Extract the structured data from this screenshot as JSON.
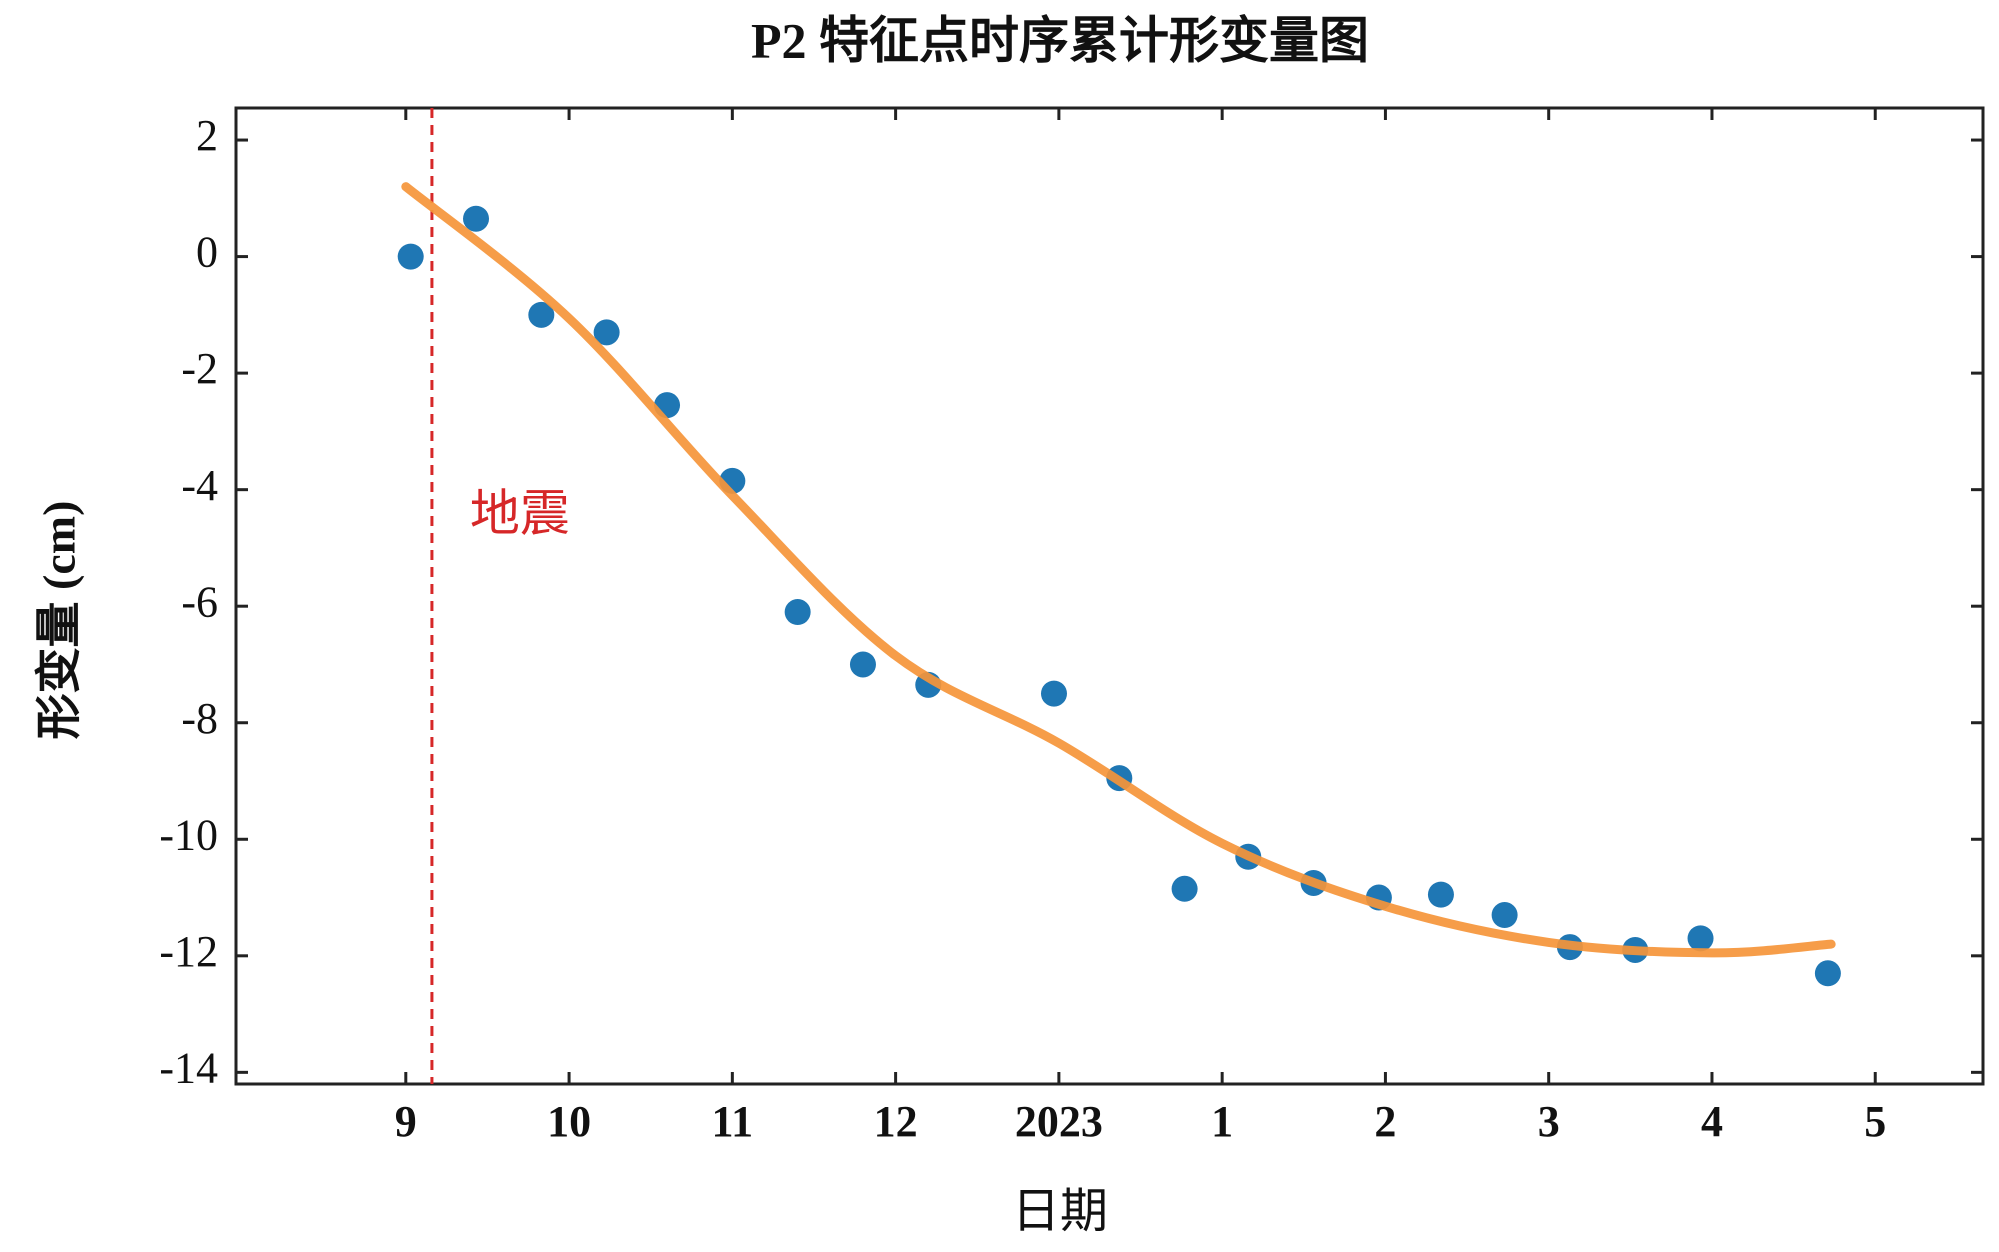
{
  "chart_data": {
    "type": "scatter",
    "title": "P2 特征点时序累计形变量图",
    "x_label": "日期",
    "y_label": "形变量 (cm)",
    "xlim": [
      -1.04,
      9.66
    ],
    "ylim": [
      -14.2,
      2.55
    ],
    "xticks": [
      {
        "value": 0,
        "label": "9"
      },
      {
        "value": 1,
        "label": "10"
      },
      {
        "value": 2,
        "label": "11"
      },
      {
        "value": 3,
        "label": "12"
      },
      {
        "value": 4,
        "label": "2023"
      },
      {
        "value": 5,
        "label": "1"
      },
      {
        "value": 6,
        "label": "2"
      },
      {
        "value": 7,
        "label": "3"
      },
      {
        "value": 8,
        "label": "4"
      },
      {
        "value": 9,
        "label": "5"
      }
    ],
    "yticks": [
      2,
      0,
      -2,
      -4,
      -6,
      -8,
      -10,
      -12,
      -14
    ],
    "series": [
      {
        "type": "scatter",
        "color": "#1f77b4",
        "x": [
          0.03,
          0.43,
          0.83,
          1.23,
          1.6,
          2.0,
          2.4,
          2.8,
          3.2,
          3.97,
          4.37,
          4.77,
          5.16,
          5.56,
          5.96,
          6.34,
          6.73,
          7.13,
          7.53,
          7.93,
          8.71
        ],
        "values": [
          0,
          0.65,
          -1.0,
          -1.3,
          -2.55,
          -3.85,
          -6.1,
          -7.0,
          -7.35,
          -7.5,
          -8.95,
          -10.85,
          -10.3,
          -10.75,
          -11.0,
          -10.95,
          -11.3,
          -11.85,
          -11.9,
          -11.7,
          -12.3
        ]
      },
      {
        "type": "line",
        "color": "#f5953a",
        "x": [
          0,
          1,
          2,
          3,
          4,
          5,
          6,
          7,
          8,
          8.73
        ],
        "values": [
          1.2,
          -1.06,
          -4.1,
          -6.85,
          -8.35,
          -10.07,
          -11.15,
          -11.77,
          -11.95,
          -11.8
        ]
      }
    ],
    "event_line": {
      "x": 0.16,
      "label": "地震",
      "color": "#d62728"
    },
    "grid": false
  }
}
